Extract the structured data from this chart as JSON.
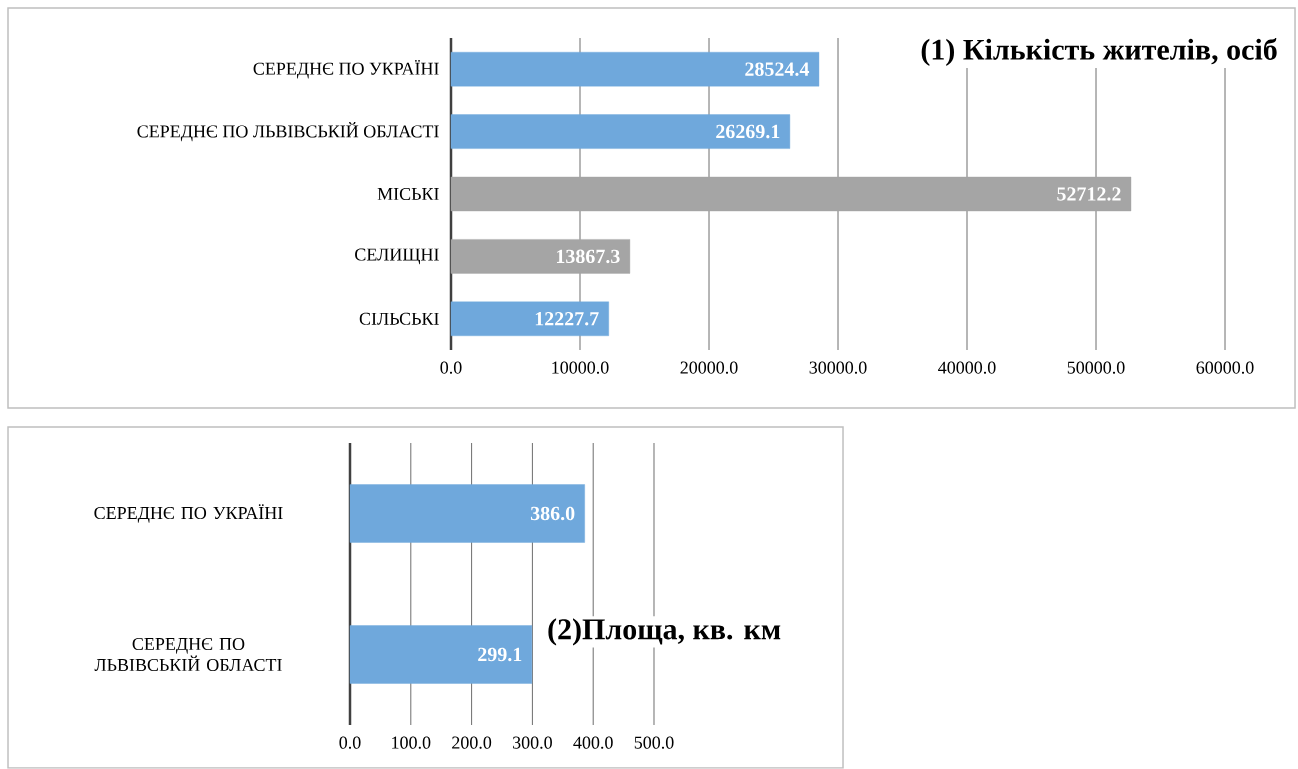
{
  "chart_data": [
    {
      "type": "bar",
      "orientation": "horizontal",
      "title": "(1) Кількість жителів, осіб",
      "categories": [
        "СЕРЕДНЄ ПО УКРАЇНІ",
        "СЕРЕДНЄ ПО ЛЬВІВСЬКІЙ ОБЛАСТІ",
        "МІСЬКІ",
        "СЕЛИЩНІ",
        "СІЛЬСЬКІ"
      ],
      "values": [
        28524.4,
        26269.1,
        52712.2,
        13867.3,
        12227.7
      ],
      "value_labels": [
        "28524.4",
        "26269.1",
        "52712.2",
        "13867.3",
        "12227.7"
      ],
      "colors": [
        "#6fa8dc",
        "#6fa8dc",
        "#a5a5a5",
        "#a5a5a5",
        "#6fa8dc"
      ],
      "xlim": [
        0,
        60000
      ],
      "xticks": [
        {
          "value": 0,
          "label": "0.0"
        },
        {
          "value": 10000,
          "label": "10000.0"
        },
        {
          "value": 20000,
          "label": "20000.0"
        },
        {
          "value": 30000,
          "label": "30000.0"
        },
        {
          "value": 40000,
          "label": "40000.0"
        },
        {
          "value": 50000,
          "label": "50000.0"
        },
        {
          "value": 60000,
          "label": "60000.0"
        }
      ],
      "grid": "x"
    },
    {
      "type": "bar",
      "orientation": "horizontal",
      "title": "(2)Площа, кв. км",
      "categories": [
        "СЕРЕДНЄ ПО УКРАЇНІ",
        "СЕРЕДНЄ ПО ЛЬВІВСЬКІЙ ОБЛАСТІ"
      ],
      "values": [
        386.0,
        299.1
      ],
      "value_labels": [
        "386.0",
        "299.1"
      ],
      "colors": [
        "#6fa8dc",
        "#6fa8dc"
      ],
      "xlim": [
        0,
        500
      ],
      "xticks": [
        {
          "value": 0,
          "label": "0.0"
        },
        {
          "value": 100,
          "label": "100.0"
        },
        {
          "value": 200,
          "label": "200.0"
        },
        {
          "value": 300,
          "label": "300.0"
        },
        {
          "value": 400,
          "label": "400.0"
        },
        {
          "value": 500,
          "label": "500.0"
        }
      ],
      "grid": "x"
    }
  ]
}
